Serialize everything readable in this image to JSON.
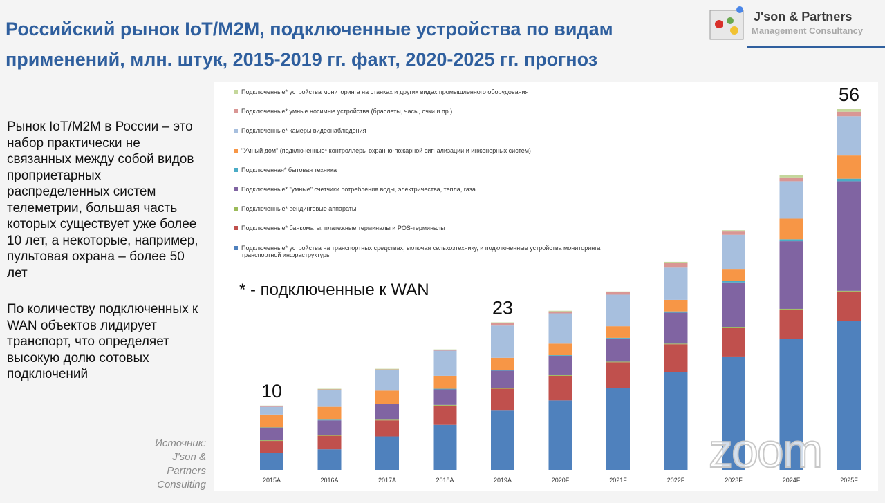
{
  "header": {
    "title": "Российский рынок IoT/M2M, подключенные устройства по видам применений, млн. штук, 2015-2019 гг. факт, 2020-2025 гг. прогноз"
  },
  "logo": {
    "name": "J'son & Partners",
    "tagline": "Management Consultancy"
  },
  "body": [
    "Рынок IoT/M2M в России – это набор практически не связанных между собой видов проприетарных распределенных систем телеметрии, большая часть которых существует уже более 10 лет, а некоторые, например, пультовая охрана – более 50 лет",
    "По количеству подключенных к WAN объектов лидирует транспорт, что определяет высокую долю сотовых подключений"
  ],
  "source": "Источник: J'son & Partners Consulting",
  "watermark": "zoom",
  "chart_data": {
    "type": "stacked_bar",
    "note": "* - подключенные к WAN",
    "categories": [
      "2015A",
      "2016A",
      "2017A",
      "2018A",
      "2019A",
      "2020F",
      "2021F",
      "2022F",
      "2023F",
      "2024F",
      "2025F"
    ],
    "totals": [
      10,
      null,
      null,
      null,
      23,
      null,
      null,
      null,
      null,
      null,
      56
    ],
    "series": [
      {
        "name": "Подключенные* устройства на транспортных средствах, включая сельхозтехнику, и подключенные устройства мониторинга транспортной инфраструктуры",
        "color": "#4f81bd",
        "values": [
          2.6,
          3.2,
          5.2,
          7.0,
          9.2,
          10.8,
          12.7,
          15.2,
          17.6,
          20.3,
          23.1
        ]
      },
      {
        "name": "Подключенные* банкоматы, платежные терминалы и POS-терминалы",
        "color": "#c0504d",
        "values": [
          1.9,
          2.1,
          2.5,
          3.0,
          3.4,
          3.8,
          4.0,
          4.3,
          4.5,
          4.6,
          4.6
        ]
      },
      {
        "name": "Подключенные* вендинговые аппараты",
        "color": "#9bbb59",
        "values": [
          0.1,
          0.1,
          0.1,
          0.1,
          0.1,
          0.1,
          0.1,
          0.1,
          0.1,
          0.1,
          0.1
        ]
      },
      {
        "name": "Подключенные* \"умные\" счетчики потребления воды, электричества, тепла, газа",
        "color": "#8064a2",
        "values": [
          1.9,
          2.3,
          2.4,
          2.4,
          2.7,
          3.0,
          3.6,
          4.8,
          6.9,
          10.5,
          17.0
        ]
      },
      {
        "name": "Подключенная* бытовая техника",
        "color": "#4bacc6",
        "values": [
          0.1,
          0.1,
          0.1,
          0.1,
          0.1,
          0.1,
          0.1,
          0.2,
          0.2,
          0.3,
          0.4
        ]
      },
      {
        "name": "\"Умный дом\" (подключенные* контроллеры охранно-пожарной сигнализации и инженерных систем)",
        "color": "#f79646",
        "values": [
          2.0,
          2.0,
          2.0,
          2.0,
          1.9,
          1.8,
          1.8,
          1.8,
          1.8,
          3.2,
          3.6
        ]
      },
      {
        "name": "Подключенные* камеры видеонаблюдения",
        "color": "#a7bfde",
        "values": [
          1.2,
          2.6,
          3.2,
          3.9,
          5.0,
          4.7,
          4.9,
          5.0,
          5.4,
          5.8,
          6.1
        ]
      },
      {
        "name": "Подключенные* умные носимые устройства (браслеты, часы, очки и пр.)",
        "color": "#d99694",
        "values": [
          0.1,
          0.1,
          0.1,
          0.1,
          0.4,
          0.3,
          0.4,
          0.7,
          0.5,
          0.6,
          0.7
        ]
      },
      {
        "name": "Подключенные* устройства мониторинга на станках и других видах промышленного оборудования",
        "color": "#c4d79b",
        "values": [
          0.1,
          0.1,
          0.1,
          0.1,
          0.1,
          0.1,
          0.1,
          0.2,
          0.2,
          0.3,
          0.4
        ]
      }
    ]
  }
}
